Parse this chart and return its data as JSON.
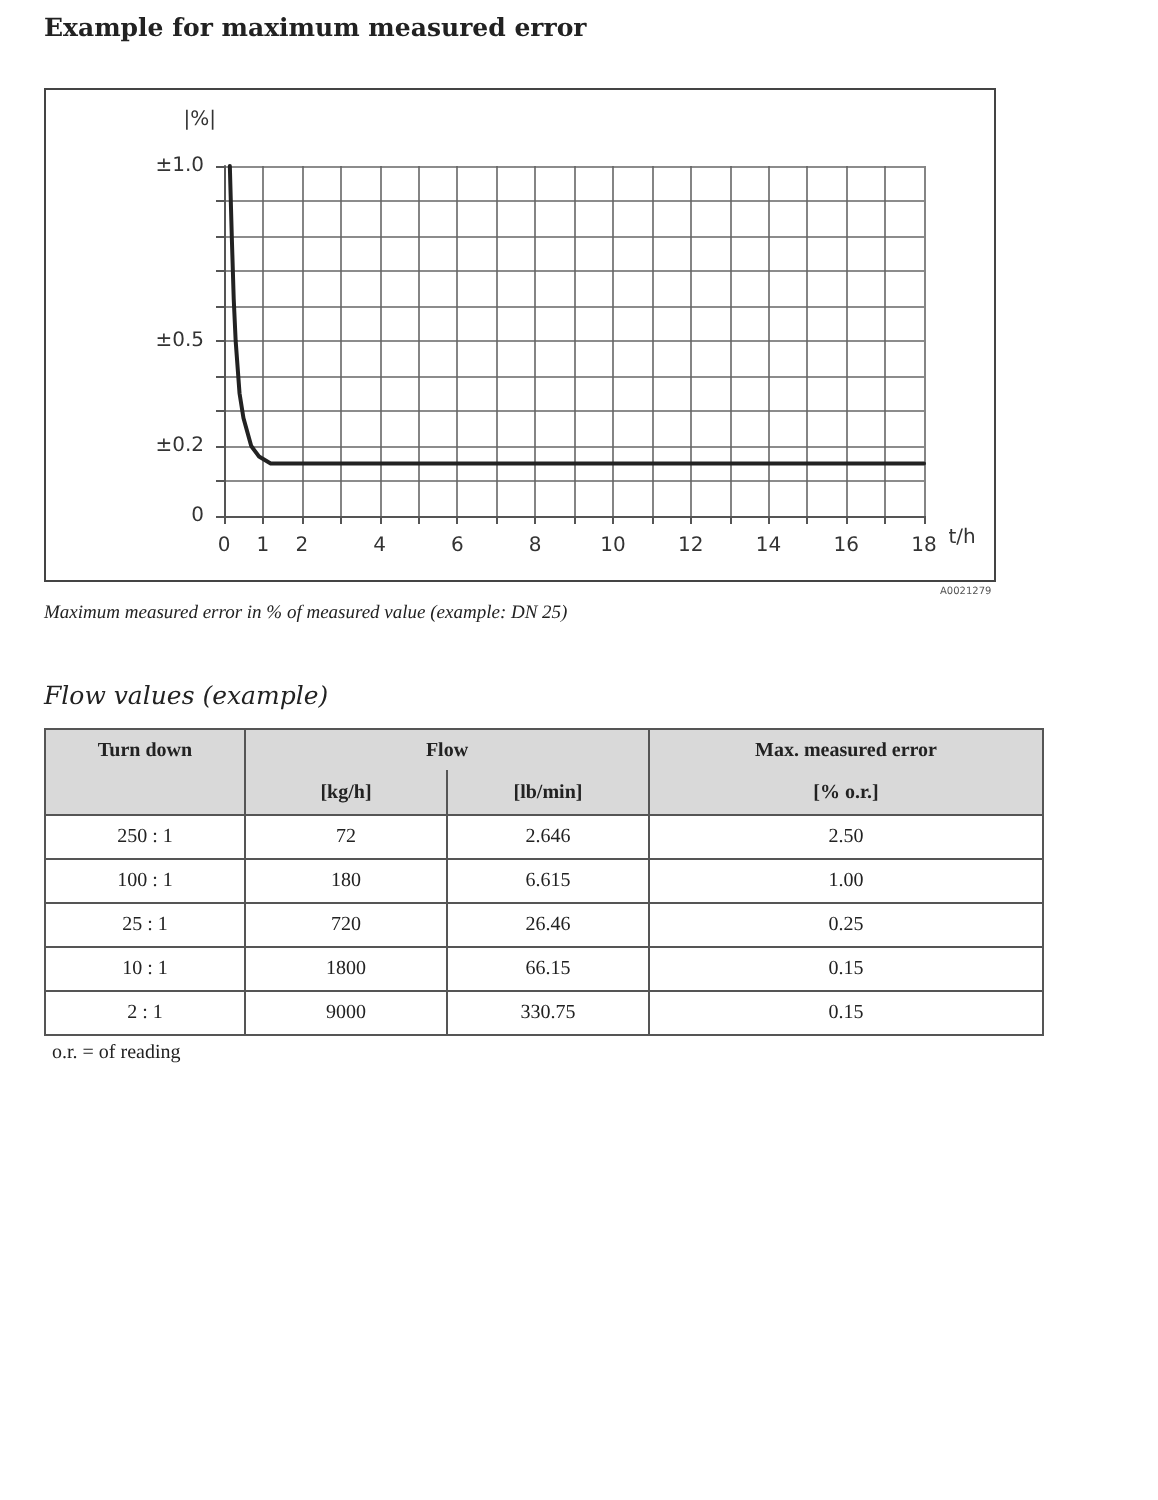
{
  "chart_data": [
    {
      "type": "line",
      "title": "Example for maximum measured error",
      "xlabel": "t/h",
      "ylabel": "|%|",
      "x": [
        0.15,
        0.2,
        0.25,
        0.3,
        0.4,
        0.5,
        0.7,
        0.9,
        1.2,
        4,
        18
      ],
      "series": [
        {
          "color": "#222222",
          "values": [
            1.0,
            0.8,
            0.62,
            0.5,
            0.35,
            0.28,
            0.2,
            0.17,
            0.15,
            0.15,
            0.15
          ]
        }
      ],
      "xlim": [
        0,
        18
      ],
      "xticks": [
        0,
        1,
        2,
        {
          "value": 3,
          "label": null
        },
        4,
        {
          "value": 5,
          "label": null
        },
        6,
        {
          "value": 7,
          "label": null
        },
        8,
        {
          "value": 9,
          "label": null
        },
        10,
        {
          "value": 11,
          "label": null
        },
        12,
        {
          "value": 13,
          "label": null
        },
        14,
        {
          "value": 15,
          "label": null
        },
        16,
        {
          "value": 17,
          "label": null
        },
        18
      ],
      "ylim": [
        0,
        1.0
      ],
      "yticks": [
        0,
        {
          "value": 0.1,
          "label": null
        },
        {
          "value": 0.2,
          "label": "±0.2"
        },
        {
          "value": 0.3,
          "label": null
        },
        {
          "value": 0.4,
          "label": null
        },
        {
          "value": 0.5,
          "label": "±0.5"
        },
        {
          "value": 0.6,
          "label": null
        },
        {
          "value": 0.7,
          "label": null
        },
        {
          "value": 0.8,
          "label": null
        },
        {
          "value": 0.9,
          "label": null
        },
        {
          "value": 1.0,
          "label": "±1.0"
        }
      ],
      "grid": true,
      "marker": "none",
      "line_style": "solid",
      "annotations": [
        "Maximum measured error in % of measured value (example: DN 25)",
        "A0021279"
      ]
    },
    {
      "type": "other",
      "title": "Flow values (example)",
      "annotations": [
        "Turn down",
        "Flow",
        "Max. measured error",
        "[kg/h]",
        "[lb/min]",
        "[% o.r.]",
        "250 : 1",
        "72",
        "2.646",
        "2.50",
        "100 : 1",
        "180",
        "6.615",
        "1.00",
        "25 : 1",
        "720",
        "26.46",
        "0.25",
        "10 : 1",
        "1800",
        "66.15",
        "0.15",
        "2 : 1",
        "9000",
        "330.75",
        "0.15",
        "o.r. = of reading"
      ]
    }
  ]
}
